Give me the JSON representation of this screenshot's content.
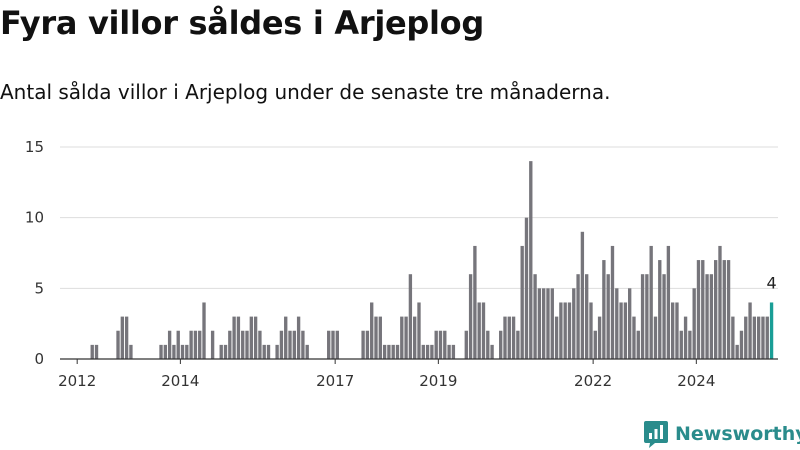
{
  "title": "Fyra villor såldes i Arjeplog",
  "subtitle": "Antal sålda villor i Arjeplog under de senaste tre månaderna.",
  "brand": {
    "name": "Newsworthy",
    "icon": "newsworthy-logo-icon"
  },
  "colors": {
    "bar": "#76757b",
    "highlight": "#1a9e96",
    "grid": "#dddddd",
    "brand": "#2a8c8c"
  },
  "chart_data": {
    "type": "bar",
    "title": "Fyra villor såldes i Arjeplog",
    "subtitle": "Antal sålda villor i Arjeplog under de senaste tre månaderna.",
    "xlabel": "",
    "ylabel": "",
    "ylim": [
      0,
      15
    ],
    "yticks": [
      0,
      5,
      10,
      15
    ],
    "grid": true,
    "xaxis": {
      "start": 2011.667,
      "end": 2025.583
    },
    "xticks": [
      {
        "label": "2012",
        "value": 2012
      },
      {
        "label": "2014",
        "value": 2014
      },
      {
        "label": "2017",
        "value": 2017
      },
      {
        "label": "2019",
        "value": 2019
      },
      {
        "label": "2022",
        "value": 2022
      },
      {
        "label": "2024",
        "value": 2024
      }
    ],
    "series_start": {
      "year": 2011,
      "month": 10,
      "step_months": 1
    },
    "values": [
      0,
      0,
      0,
      0,
      0,
      0,
      1,
      1,
      0,
      0,
      0,
      0,
      2,
      3,
      3,
      1,
      0,
      0,
      0,
      0,
      0,
      0,
      1,
      1,
      2,
      1,
      2,
      1,
      1,
      2,
      2,
      2,
      4,
      0,
      2,
      0,
      1,
      1,
      2,
      3,
      3,
      2,
      2,
      3,
      3,
      2,
      1,
      1,
      0,
      1,
      2,
      3,
      2,
      2,
      3,
      2,
      1,
      0,
      0,
      0,
      0,
      2,
      2,
      2,
      0,
      0,
      0,
      0,
      0,
      2,
      2,
      4,
      3,
      3,
      1,
      1,
      1,
      1,
      3,
      3,
      6,
      3,
      4,
      1,
      1,
      1,
      2,
      2,
      2,
      1,
      1,
      0,
      0,
      2,
      6,
      8,
      4,
      4,
      2,
      1,
      0,
      2,
      3,
      3,
      3,
      2,
      8,
      10,
      14,
      6,
      5,
      5,
      5,
      5,
      3,
      4,
      4,
      4,
      5,
      6,
      9,
      6,
      4,
      2,
      3,
      7,
      6,
      8,
      5,
      4,
      4,
      5,
      3,
      2,
      6,
      6,
      8,
      3,
      7,
      6,
      8,
      4,
      4,
      2,
      3,
      2,
      5,
      7,
      7,
      6,
      6,
      7,
      8,
      7,
      7,
      3,
      1,
      2,
      3,
      4,
      3,
      3,
      3,
      3,
      4
    ],
    "highlight_last": true,
    "last_value_label": "4"
  }
}
